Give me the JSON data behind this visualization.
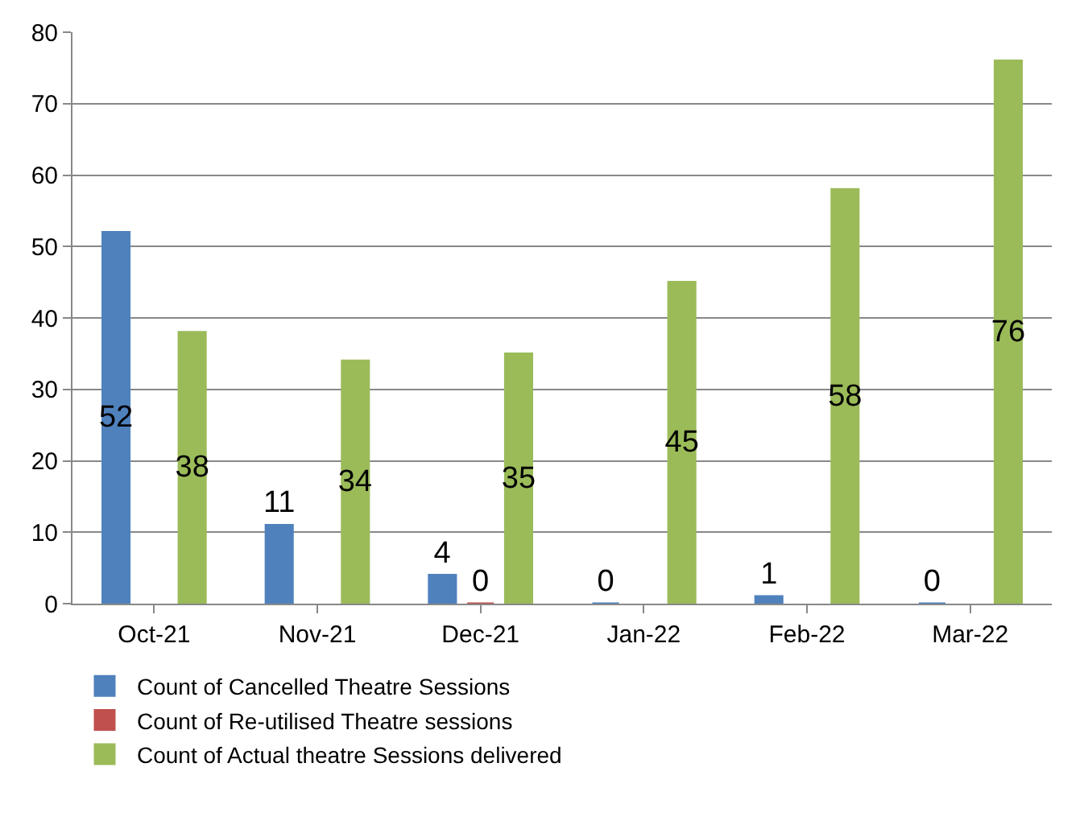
{
  "chart_data": {
    "type": "bar",
    "categories": [
      "Oct-21",
      "Nov-21",
      "Dec-21",
      "Jan-22",
      "Feb-22",
      "Mar-22"
    ],
    "series": [
      {
        "name": "Count of Cancelled Theatre Sessions",
        "color": "#4f81bd",
        "values": [
          52,
          11,
          4,
          0,
          1,
          0
        ]
      },
      {
        "name": "Count of Re-utilised Theatre sessions",
        "color": "#c0504d",
        "values": [
          null,
          null,
          0,
          null,
          null,
          null
        ]
      },
      {
        "name": "Count of Actual theatre Sessions delivered",
        "color": "#9bbb59",
        "values": [
          38,
          34,
          35,
          45,
          58,
          76
        ]
      }
    ],
    "ylim": [
      0,
      80
    ],
    "yticks": [
      0,
      10,
      20,
      30,
      40,
      50,
      60,
      70,
      80
    ],
    "grid": "y",
    "legend": "bottom",
    "data_labels": true
  }
}
